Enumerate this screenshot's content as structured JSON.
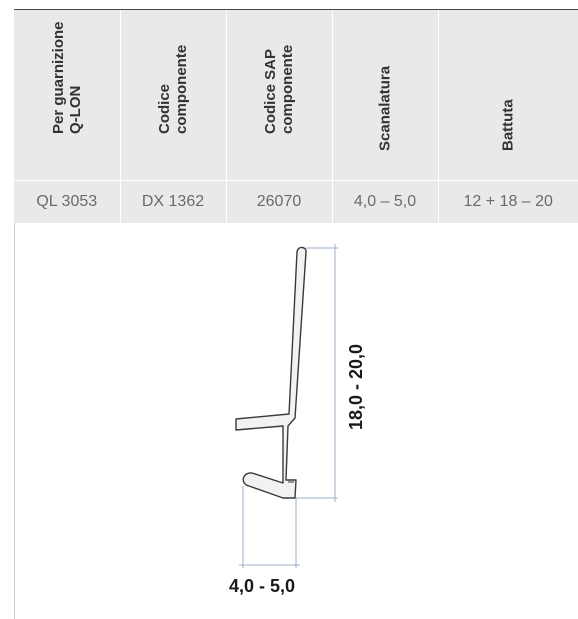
{
  "table": {
    "headers": [
      "Per guarnizione\nQ-LON",
      "Codice\ncomponente",
      "Codice SAP\ncomponente",
      "Scanalatura",
      "Battuta"
    ],
    "row": [
      "QL 3053",
      "DX 1362",
      "26070",
      "4,0 – 5,0",
      "12 + 18 – 20"
    ]
  },
  "drawing": {
    "height_label": "18,0 - 20,0",
    "width_label": "4,0 - 5,0"
  },
  "colors": {
    "header_bg": "#e9e9e9",
    "profile_fill": "#f2f2f2",
    "dimension_line": "#9bb0c9"
  }
}
